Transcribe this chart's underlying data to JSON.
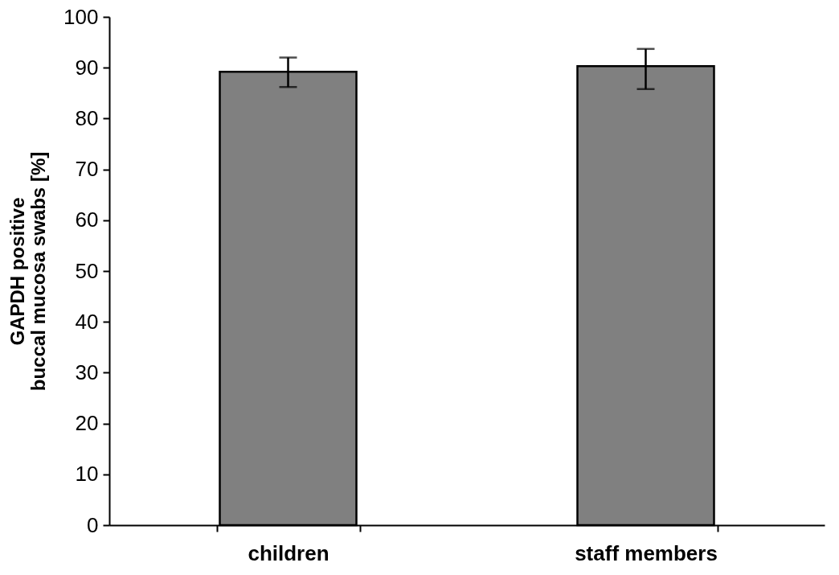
{
  "chart_data": {
    "type": "bar",
    "ylabel": "GAPDH positive\nbuccal mucosa swabs [%]",
    "categories": [
      "children",
      "staff members"
    ],
    "series": [
      {
        "color": "#808080",
        "values": [
          89.2,
          90.3
        ],
        "errors": [
          [
            86.2,
            92.0
          ],
          [
            85.8,
            93.7
          ]
        ]
      }
    ],
    "ylim": [
      0,
      100
    ],
    "yticks": [
      0,
      10,
      20,
      30,
      40,
      50,
      60,
      70,
      80,
      90,
      100
    ],
    "grid": false
  }
}
